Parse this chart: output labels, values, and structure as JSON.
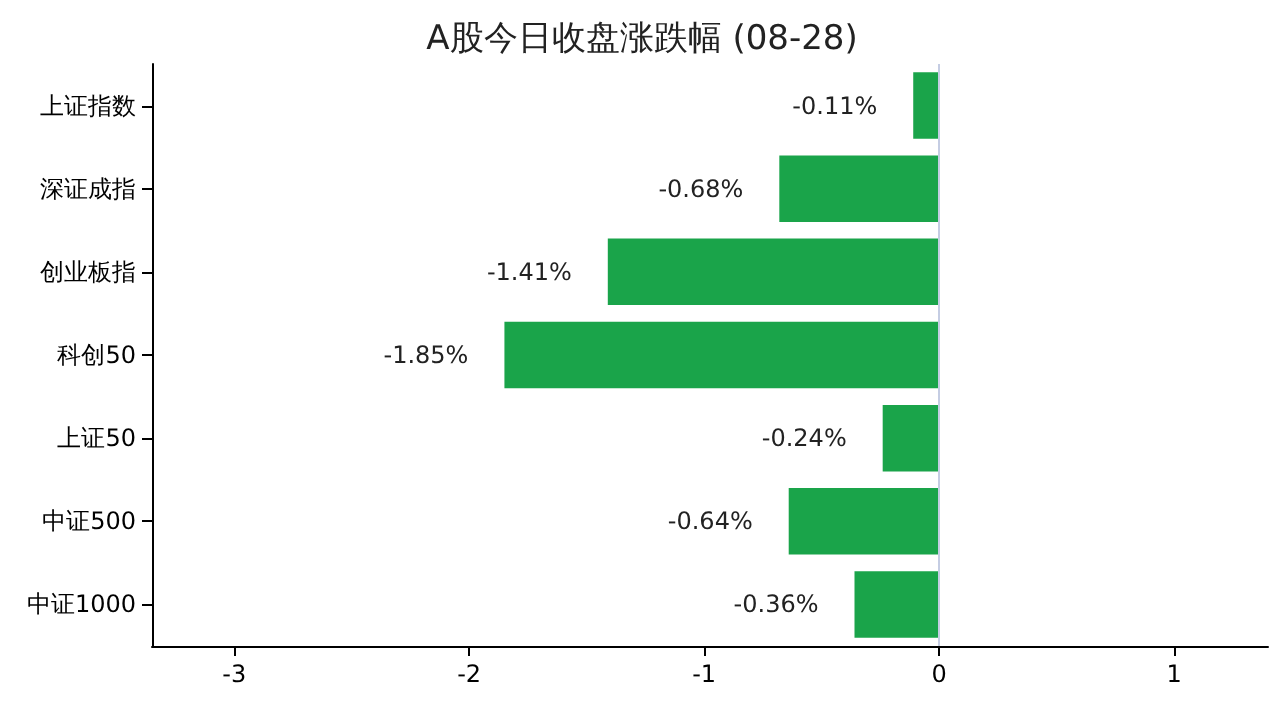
{
  "chart_data": {
    "type": "bar",
    "orientation": "horizontal",
    "title": "A股今日收盘涨跌幅 (08-28)",
    "categories": [
      "上证指数",
      "深证成指",
      "创业板指",
      "科创50",
      "上证50",
      "中证500",
      "中证1000"
    ],
    "values": [
      -0.11,
      -0.68,
      -1.41,
      -1.85,
      -0.24,
      -0.64,
      -0.36
    ],
    "value_labels": [
      "-0.11%",
      "-0.68%",
      "-1.41%",
      "-1.85%",
      "-0.24%",
      "-0.64%",
      "-0.36%"
    ],
    "color": "#1aa44a",
    "xlim": [
      -3.35,
      1.4
    ],
    "xticks": [
      -3,
      -2,
      -1,
      0,
      1
    ],
    "ref_lines": [
      {
        "axis": "x",
        "value": 0,
        "color": "#c5cde3"
      }
    ],
    "grid": false
  }
}
